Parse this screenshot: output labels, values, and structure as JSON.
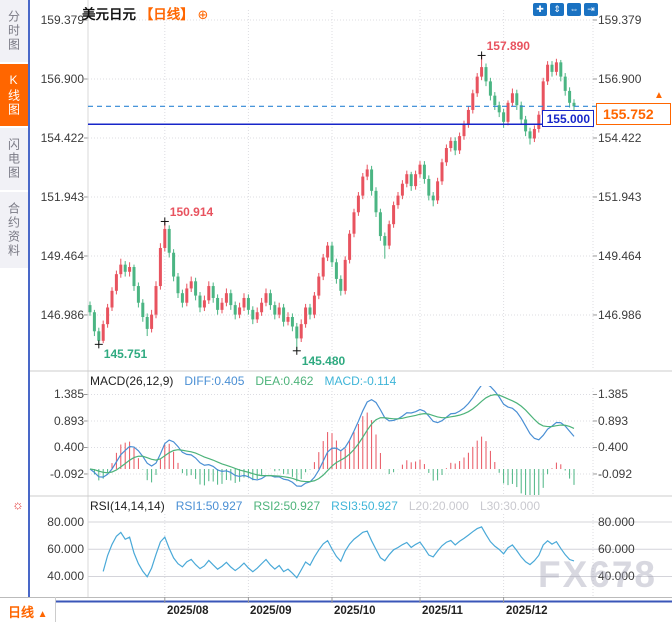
{
  "header": {
    "symbol": "美元日元",
    "period_tag": "【日线】",
    "add_icon": "⊕"
  },
  "toolbar": {
    "buttons": [
      {
        "name": "pan-icon",
        "glyph": "✚"
      },
      {
        "name": "zoom-vertical-icon",
        "glyph": "⇕"
      },
      {
        "name": "zoom-horizontal-icon",
        "glyph": "⇔"
      },
      {
        "name": "export-icon",
        "glyph": "⇥"
      }
    ]
  },
  "sidebar": {
    "items": [
      {
        "label": "分时图",
        "active": false
      },
      {
        "label": "K线图",
        "active": true
      },
      {
        "label": "闪电图",
        "active": false
      },
      {
        "label": "合约资料",
        "active": false
      }
    ]
  },
  "main_axis": {
    "left": [
      "159.379",
      "156.900",
      "154.422",
      "151.943",
      "149.464",
      "146.986"
    ],
    "right": [
      "159.379",
      "156.900",
      "154.422",
      "151.943",
      "149.464",
      "146.986"
    ]
  },
  "price_markers": {
    "level_line": {
      "value": 155.0,
      "label": "155.000"
    },
    "current": {
      "value": 155.752,
      "label": "155.752",
      "marker_icon": "▲"
    }
  },
  "macd_panel": {
    "title": "MACD(26,12,9)",
    "diff_label": "DIFF:0.405",
    "dea_label": "DEA:0.462",
    "macd_label": "MACD:-0.114",
    "axis": [
      "1.385",
      "0.893",
      "0.400",
      "-0.092"
    ]
  },
  "rsi_panel": {
    "title": "RSI(14,14,14)",
    "rsi1_label": "RSI1:50.927",
    "rsi2_label": "RSI2:50.927",
    "rsi3_label": "RSI3:50.927",
    "l20_label": "L20:20.000",
    "l30_label": "L30:30.000",
    "axis": [
      "80.000",
      "60.000",
      "40.000"
    ]
  },
  "bottom_bar": {
    "period_label": "日线",
    "collapse_icon": "▲",
    "dates": [
      "2025/08",
      "2025/09",
      "2025/10",
      "2025/11",
      "2025/12"
    ]
  },
  "watermark": "FX678",
  "colors": {
    "accent_orange": "#ff6600",
    "candle_up": "#e8535f",
    "candle_down": "#4bb583",
    "level_line_blue": "#1726c9",
    "current_dash_blue": "#2e86d5",
    "diff_line": "#4a8fd4",
    "dea_line": "#4db37a",
    "rsi_line": "#4aa9d8",
    "grid": "#dcdce2",
    "annotation_high": "#e8535f",
    "annotation_low": "#2faa80"
  },
  "chart_data": {
    "type": "candlestick",
    "title": "美元日元 日线",
    "y_axis_ticks": [
      159.379,
      156.9,
      154.422,
      151.943,
      149.464,
      146.986
    ],
    "x_tick_labels": [
      "2025/08",
      "2025/09",
      "2025/10",
      "2025/11",
      "2025/12"
    ],
    "x_tick_indices": [
      17,
      36,
      55,
      75,
      94
    ],
    "current_price": 155.752,
    "horizontal_level": 155.0,
    "annotations": [
      {
        "index": 2,
        "price": 145.751,
        "label": "145.751",
        "kind": "low"
      },
      {
        "index": 17,
        "price": 150.914,
        "label": "150.914",
        "kind": "high"
      },
      {
        "index": 47,
        "price": 145.48,
        "label": "145.480",
        "kind": "low"
      },
      {
        "index": 89,
        "price": 157.89,
        "label": "157.890",
        "kind": "high"
      }
    ],
    "candles": [
      [
        147.4,
        147.55,
        146.95,
        147.1
      ],
      [
        147.1,
        147.2,
        146.1,
        146.3
      ],
      [
        146.3,
        146.45,
        145.751,
        145.9
      ],
      [
        145.9,
        146.75,
        145.8,
        146.6
      ],
      [
        146.6,
        147.45,
        146.45,
        147.3
      ],
      [
        147.3,
        148.15,
        147.15,
        148.0
      ],
      [
        148.0,
        148.85,
        147.85,
        148.7
      ],
      [
        148.7,
        149.35,
        148.55,
        149.1
      ],
      [
        149.1,
        149.25,
        148.6,
        148.8
      ],
      [
        148.8,
        149.2,
        148.6,
        149.0
      ],
      [
        149.0,
        149.1,
        148.0,
        148.2
      ],
      [
        148.2,
        148.35,
        147.3,
        147.5
      ],
      [
        147.5,
        147.65,
        146.7,
        146.9
      ],
      [
        146.9,
        147.05,
        146.1,
        146.4
      ],
      [
        146.4,
        147.2,
        146.25,
        147.0
      ],
      [
        147.0,
        148.4,
        146.85,
        148.2
      ],
      [
        148.2,
        150.0,
        148.05,
        149.8
      ],
      [
        149.8,
        150.914,
        149.65,
        150.6
      ],
      [
        150.6,
        150.75,
        149.4,
        149.6
      ],
      [
        149.6,
        149.75,
        148.4,
        148.6
      ],
      [
        148.6,
        148.75,
        147.7,
        147.9
      ],
      [
        147.9,
        148.05,
        147.3,
        147.5
      ],
      [
        147.5,
        148.3,
        147.35,
        148.1
      ],
      [
        148.1,
        148.6,
        147.95,
        148.4
      ],
      [
        148.4,
        148.55,
        147.6,
        147.8
      ],
      [
        147.8,
        147.95,
        147.1,
        147.3
      ],
      [
        147.3,
        147.8,
        147.15,
        147.6
      ],
      [
        147.6,
        148.4,
        147.45,
        148.2
      ],
      [
        148.2,
        148.35,
        147.5,
        147.7
      ],
      [
        147.7,
        147.85,
        147.0,
        147.2
      ],
      [
        147.2,
        147.7,
        147.05,
        147.5
      ],
      [
        147.5,
        148.1,
        147.35,
        147.9
      ],
      [
        147.9,
        148.05,
        147.2,
        147.4
      ],
      [
        147.4,
        147.55,
        146.8,
        147.0
      ],
      [
        147.0,
        147.5,
        146.85,
        147.3
      ],
      [
        147.3,
        147.9,
        147.15,
        147.7
      ],
      [
        147.7,
        147.85,
        147.0,
        147.2
      ],
      [
        147.2,
        147.35,
        146.6,
        146.8
      ],
      [
        146.8,
        147.3,
        146.65,
        147.1
      ],
      [
        147.1,
        147.7,
        146.95,
        147.5
      ],
      [
        147.5,
        148.1,
        147.35,
        147.9
      ],
      [
        147.9,
        148.05,
        147.2,
        147.4
      ],
      [
        147.4,
        147.55,
        146.8,
        147.0
      ],
      [
        147.0,
        147.5,
        146.85,
        147.3
      ],
      [
        147.3,
        147.45,
        146.5,
        146.7
      ],
      [
        146.7,
        147.1,
        146.55,
        146.9
      ],
      [
        146.9,
        147.05,
        146.3,
        146.5
      ],
      [
        146.5,
        146.65,
        145.48,
        146.0
      ],
      [
        146.0,
        146.8,
        145.85,
        146.6
      ],
      [
        146.6,
        147.45,
        146.45,
        147.3
      ],
      [
        147.3,
        147.45,
        146.8,
        147.0
      ],
      [
        147.0,
        147.95,
        146.85,
        147.8
      ],
      [
        147.8,
        148.75,
        147.65,
        148.6
      ],
      [
        148.6,
        149.55,
        148.45,
        149.4
      ],
      [
        149.4,
        150.05,
        149.25,
        149.9
      ],
      [
        149.9,
        150.05,
        149.0,
        149.2
      ],
      [
        149.2,
        149.35,
        148.3,
        148.5
      ],
      [
        148.5,
        148.65,
        147.8,
        148.0
      ],
      [
        148.0,
        149.45,
        147.85,
        149.3
      ],
      [
        149.3,
        150.55,
        149.15,
        150.4
      ],
      [
        150.4,
        151.45,
        150.25,
        151.3
      ],
      [
        151.3,
        152.15,
        151.15,
        152.0
      ],
      [
        152.0,
        152.95,
        151.85,
        152.8
      ],
      [
        152.8,
        153.3,
        152.65,
        153.1
      ],
      [
        153.1,
        153.25,
        152.0,
        152.2
      ],
      [
        152.2,
        152.35,
        151.1,
        151.3
      ],
      [
        151.3,
        151.45,
        150.1,
        150.3
      ],
      [
        150.3,
        150.45,
        149.35,
        149.9
      ],
      [
        149.9,
        150.95,
        149.75,
        150.8
      ],
      [
        150.8,
        151.75,
        150.65,
        151.6
      ],
      [
        151.6,
        152.15,
        151.45,
        152.0
      ],
      [
        152.0,
        152.65,
        151.85,
        152.5
      ],
      [
        152.5,
        153.05,
        152.35,
        152.9
      ],
      [
        152.9,
        153.0,
        152.2,
        152.4
      ],
      [
        152.4,
        153.05,
        152.25,
        152.9
      ],
      [
        152.9,
        153.45,
        152.75,
        153.3
      ],
      [
        153.3,
        153.45,
        152.5,
        152.7
      ],
      [
        152.7,
        152.85,
        151.8,
        152.0
      ],
      [
        152.0,
        152.15,
        151.55,
        151.8
      ],
      [
        151.8,
        152.75,
        151.65,
        152.6
      ],
      [
        152.6,
        153.55,
        152.45,
        153.4
      ],
      [
        153.4,
        154.15,
        153.25,
        154.0
      ],
      [
        154.0,
        154.45,
        153.85,
        154.3
      ],
      [
        154.3,
        154.45,
        153.7,
        153.9
      ],
      [
        153.9,
        154.65,
        153.75,
        154.5
      ],
      [
        154.5,
        155.15,
        154.35,
        155.0
      ],
      [
        155.0,
        155.75,
        154.85,
        155.6
      ],
      [
        155.6,
        156.45,
        155.45,
        156.3
      ],
      [
        156.3,
        157.15,
        156.15,
        157.0
      ],
      [
        157.0,
        157.89,
        156.85,
        157.4
      ],
      [
        157.4,
        157.55,
        156.6,
        156.8
      ],
      [
        156.8,
        156.95,
        156.0,
        156.2
      ],
      [
        156.2,
        156.35,
        155.6,
        155.8
      ],
      [
        155.8,
        155.95,
        155.3,
        155.5
      ],
      [
        155.5,
        155.65,
        154.85,
        155.1
      ],
      [
        155.1,
        156.0,
        154.95,
        155.9
      ],
      [
        155.9,
        156.5,
        155.75,
        156.3
      ],
      [
        156.3,
        156.45,
        155.6,
        155.8
      ],
      [
        155.8,
        155.95,
        155.0,
        155.2
      ],
      [
        155.2,
        155.35,
        154.5,
        154.7
      ],
      [
        154.7,
        154.85,
        154.15,
        154.4
      ],
      [
        154.4,
        154.95,
        154.25,
        154.8
      ],
      [
        154.8,
        155.55,
        154.65,
        155.4
      ],
      [
        155.4,
        156.95,
        155.25,
        156.8
      ],
      [
        156.8,
        157.65,
        156.65,
        157.5
      ],
      [
        157.5,
        157.65,
        157.0,
        157.2
      ],
      [
        157.2,
        157.75,
        157.05,
        157.6
      ],
      [
        157.6,
        157.7,
        156.8,
        157.0
      ],
      [
        157.0,
        157.15,
        156.2,
        156.4
      ],
      [
        156.4,
        156.55,
        155.7,
        155.9
      ],
      [
        155.9,
        156.05,
        155.45,
        155.752
      ]
    ],
    "indicators": {
      "macd": {
        "params": [
          26,
          12,
          9
        ],
        "diff": 0.405,
        "dea": 0.462,
        "macd": -0.114,
        "axis_ticks": [
          1.385,
          0.893,
          0.4,
          -0.092
        ]
      },
      "rsi": {
        "params": [
          14,
          14,
          14
        ],
        "rsi1": 50.927,
        "rsi2": 50.927,
        "rsi3": 50.927,
        "l20": 20.0,
        "l30": 30.0,
        "axis_ticks": [
          80.0,
          60.0,
          40.0
        ]
      }
    }
  }
}
